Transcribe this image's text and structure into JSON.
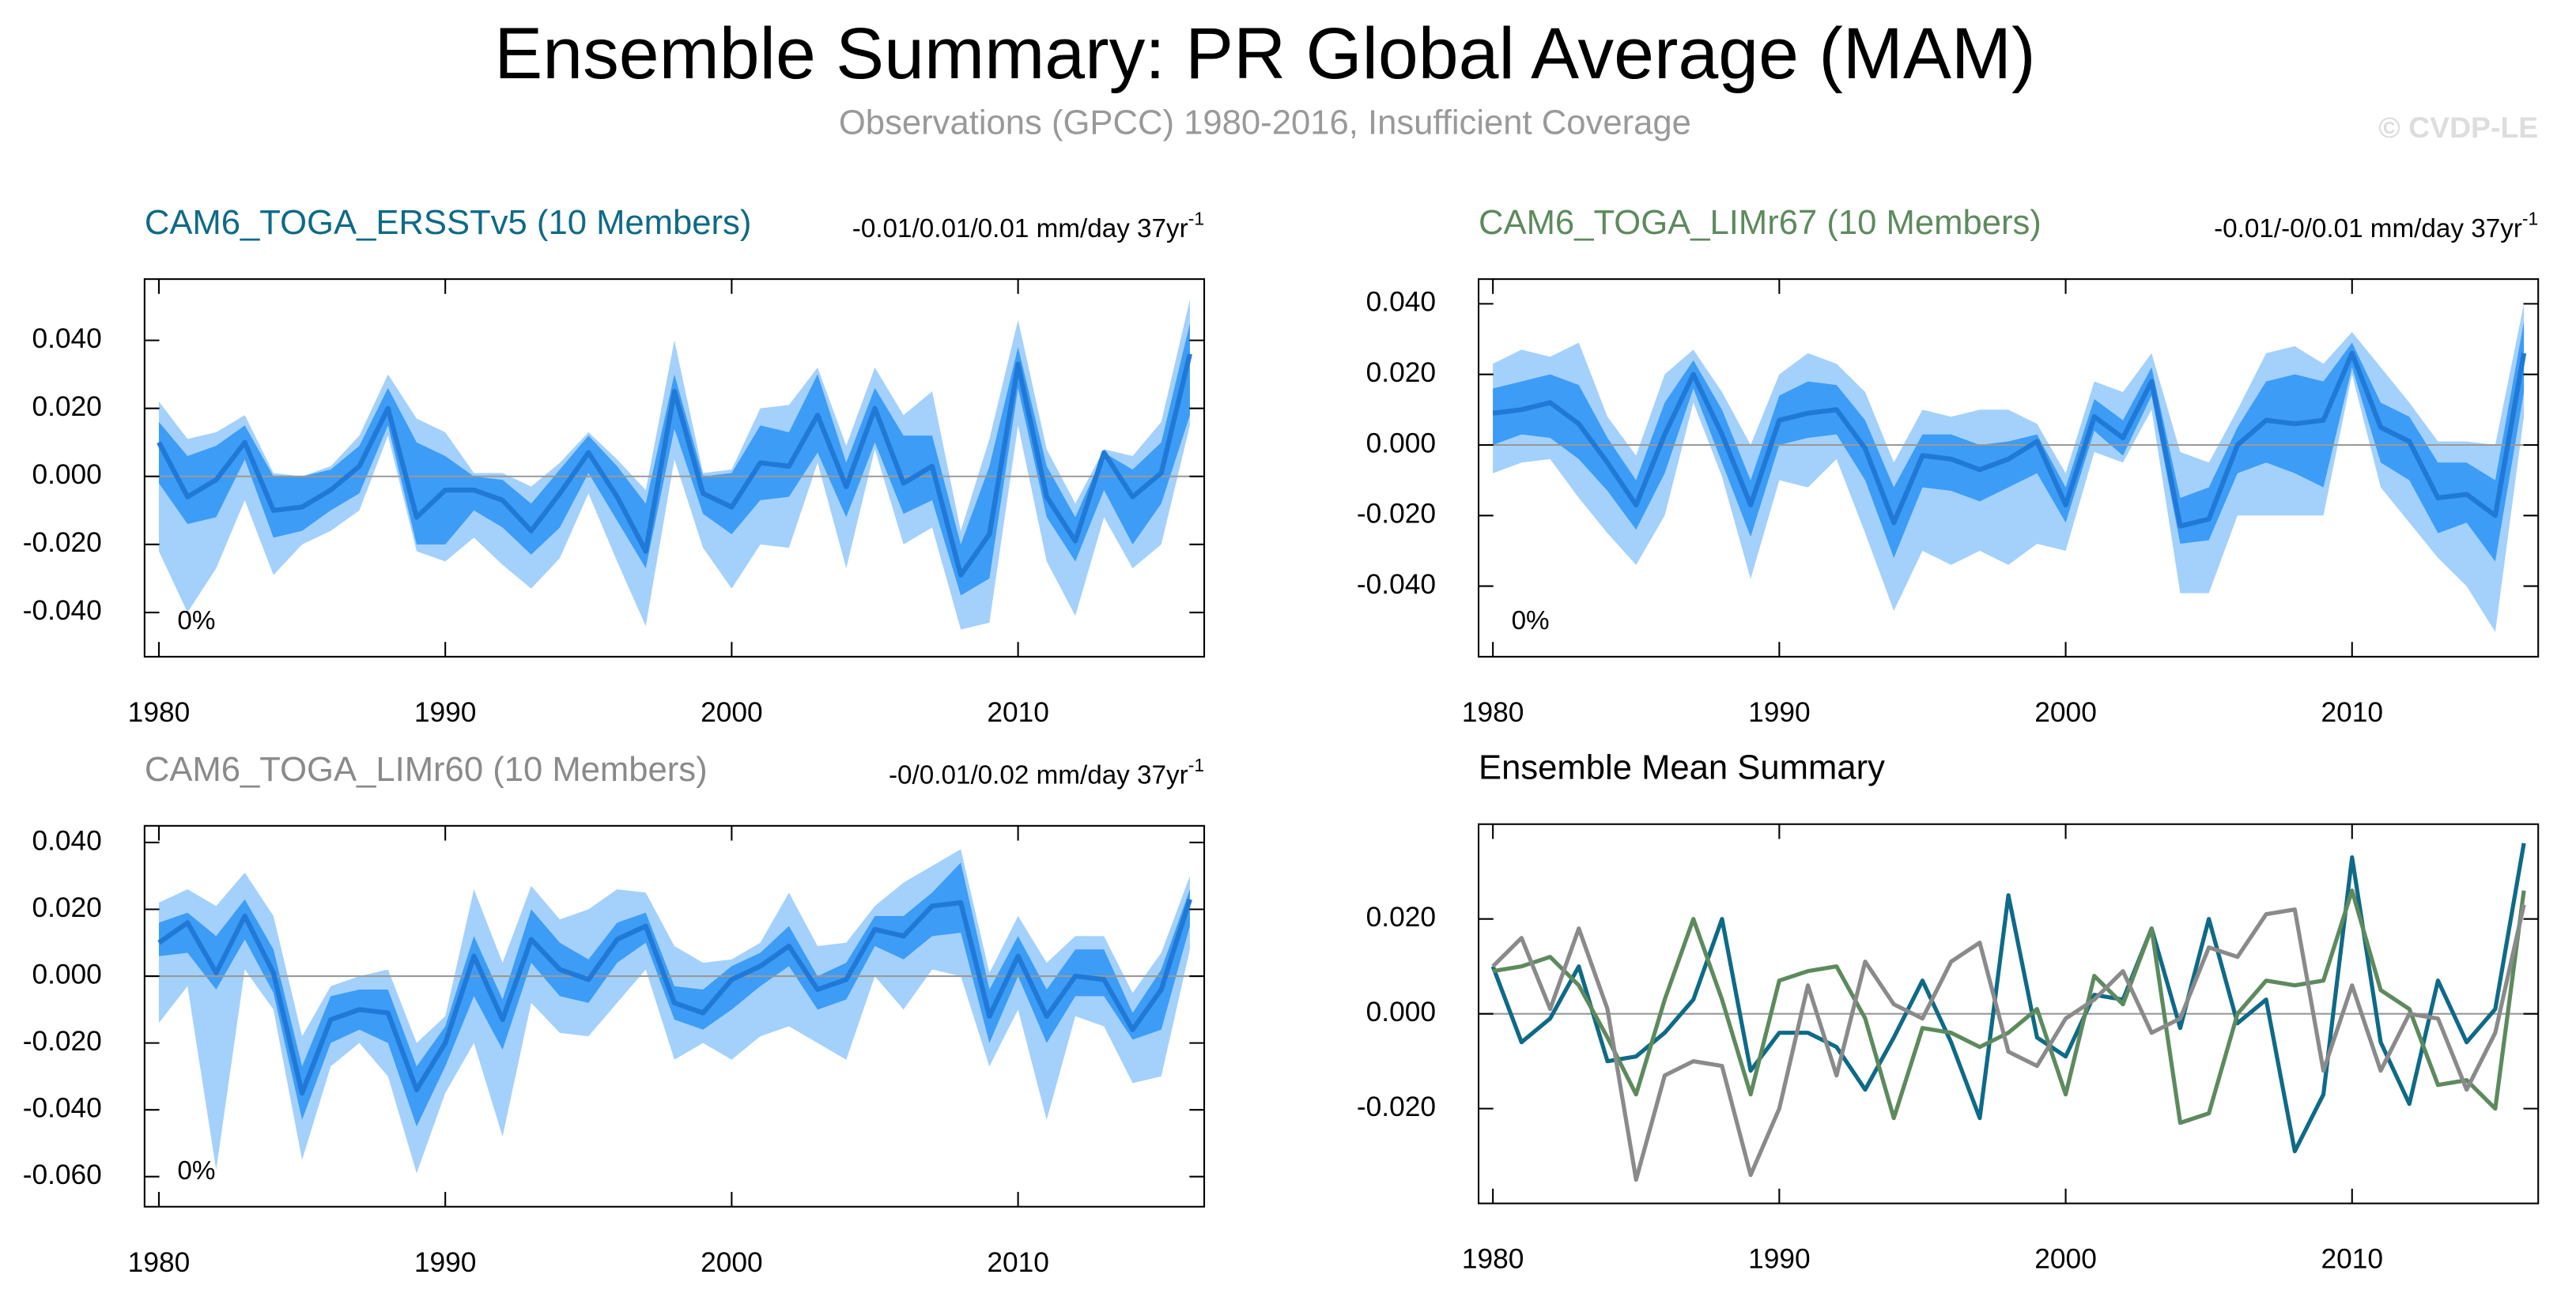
{
  "header": {
    "title": "Ensemble Summary: PR Global Average (MAM)",
    "subtitle": "Observations (GPCC) 1980-2016, Insufficient Coverage",
    "copyright": "© CVDP-LE"
  },
  "chart_data": [
    {
      "type": "band",
      "title": "CAM6_TOGA_ERSSTv5 (10 Members)",
      "title_color": "#0e6a87",
      "trend_label": "-0.01/0.01/0.01 mm/day 37yr",
      "trend_exponent": "-1",
      "annotation": "0%",
      "x": [
        1980,
        1981,
        1982,
        1983,
        1984,
        1985,
        1986,
        1987,
        1988,
        1989,
        1990,
        1991,
        1992,
        1993,
        1994,
        1995,
        1996,
        1997,
        1998,
        1999,
        2000,
        2001,
        2002,
        2003,
        2004,
        2005,
        2006,
        2007,
        2008,
        2009,
        2010,
        2011,
        2012,
        2013,
        2014,
        2015,
        2016
      ],
      "xlim": [
        1979.5,
        2016.5
      ],
      "xticks": [
        1980,
        1990,
        2000,
        2010
      ],
      "ylim": [
        -0.053,
        0.058
      ],
      "yticks": [
        {
          "value": 0.04,
          "label": "0.040"
        },
        {
          "value": 0.02,
          "label": "0.020"
        },
        {
          "value": 0,
          "label": "0.000"
        },
        {
          "value": -0.02,
          "label": "-0.020"
        },
        {
          "value": -0.04,
          "label": "-0.040"
        }
      ],
      "outer_color": "#a3d1fb",
      "inner_color": "#3d9cf5",
      "mean_color": "#2079d6",
      "outer_upper": [
        0.022,
        0.011,
        0.013,
        0.018,
        0.001,
        0.0,
        0.003,
        0.012,
        0.03,
        0.017,
        0.013,
        0.001,
        0.001,
        -0.003,
        0.004,
        0.013,
        0.005,
        -0.004,
        0.04,
        0.001,
        0.002,
        0.02,
        0.021,
        0.032,
        0.009,
        0.032,
        0.018,
        0.025,
        -0.016,
        0.011,
        0.046,
        0.008,
        -0.008,
        0.008,
        0.006,
        0.016,
        0.052
      ],
      "outer_lower": [
        -0.022,
        -0.04,
        -0.027,
        -0.007,
        -0.029,
        -0.02,
        -0.016,
        -0.01,
        0.012,
        -0.022,
        -0.025,
        -0.018,
        -0.026,
        -0.033,
        -0.024,
        -0.005,
        -0.025,
        -0.044,
        0.005,
        -0.021,
        -0.033,
        -0.02,
        -0.021,
        0.004,
        -0.027,
        0.008,
        -0.02,
        -0.015,
        -0.045,
        -0.043,
        0.015,
        -0.025,
        -0.041,
        -0.012,
        -0.027,
        -0.02,
        0.015
      ],
      "inner_upper": [
        0.016,
        0.006,
        0.009,
        0.015,
        0.0,
        0.0,
        0.002,
        0.009,
        0.026,
        0.01,
        0.006,
        0.0,
        -0.001,
        -0.008,
        0.002,
        0.012,
        0.003,
        -0.008,
        0.03,
        0.0,
        0.001,
        0.015,
        0.013,
        0.03,
        0.004,
        0.026,
        0.012,
        0.012,
        -0.02,
        0.003,
        0.038,
        0.003,
        -0.012,
        0.007,
        0.002,
        0.01,
        0.045
      ],
      "inner_lower": [
        -0.002,
        -0.014,
        -0.012,
        0.005,
        -0.018,
        -0.016,
        -0.01,
        -0.005,
        0.015,
        -0.02,
        -0.02,
        -0.01,
        -0.015,
        -0.023,
        -0.015,
        0.001,
        -0.013,
        -0.027,
        0.014,
        -0.011,
        -0.017,
        -0.007,
        -0.006,
        0.007,
        -0.012,
        0.01,
        -0.011,
        -0.007,
        -0.035,
        -0.03,
        0.026,
        -0.012,
        -0.025,
        -0.004,
        -0.02,
        -0.008,
        0.018
      ],
      "mean": [
        0.01,
        -0.006,
        -0.001,
        0.01,
        -0.01,
        -0.009,
        -0.004,
        0.003,
        0.02,
        -0.012,
        -0.004,
        -0.004,
        -0.007,
        -0.016,
        -0.005,
        0.007,
        -0.006,
        -0.022,
        0.025,
        -0.005,
        -0.009,
        0.004,
        0.003,
        0.018,
        -0.003,
        0.02,
        -0.002,
        0.003,
        -0.029,
        -0.017,
        0.033,
        -0.006,
        -0.019,
        0.007,
        -0.006,
        0.001,
        0.036
      ]
    },
    {
      "type": "band",
      "title": "CAM6_TOGA_LIMr67 (10 Members)",
      "title_color": "#5d8a5d",
      "trend_label": "-0.01/-0/0.01 mm/day 37yr",
      "trend_exponent": "-1",
      "annotation": "0%",
      "x": [
        1980,
        1981,
        1982,
        1983,
        1984,
        1985,
        1986,
        1987,
        1988,
        1989,
        1990,
        1991,
        1992,
        1993,
        1994,
        1995,
        1996,
        1997,
        1998,
        1999,
        2000,
        2001,
        2002,
        2003,
        2004,
        2005,
        2006,
        2007,
        2008,
        2009,
        2010,
        2011,
        2012,
        2013,
        2014,
        2015,
        2016
      ],
      "xlim": [
        1979.5,
        2016.5
      ],
      "xticks": [
        1980,
        1990,
        2000,
        2010
      ],
      "ylim": [
        -0.06,
        0.047
      ],
      "yticks": [
        {
          "value": 0.04,
          "label": "0.040"
        },
        {
          "value": 0.02,
          "label": "0.020"
        },
        {
          "value": 0,
          "label": "0.000"
        },
        {
          "value": -0.02,
          "label": "-0.020"
        },
        {
          "value": -0.04,
          "label": "-0.040"
        }
      ],
      "outer_color": "#a3d1fb",
      "inner_color": "#3d9cf5",
      "mean_color": "#2079d6",
      "outer_upper": [
        0.023,
        0.027,
        0.025,
        0.029,
        0.008,
        -0.003,
        0.02,
        0.027,
        0.015,
        0.0,
        0.02,
        0.026,
        0.023,
        0.015,
        -0.005,
        0.01,
        0.008,
        0.01,
        0.01,
        0.006,
        -0.008,
        0.018,
        0.015,
        0.026,
        -0.002,
        -0.005,
        0.01,
        0.026,
        0.028,
        0.023,
        0.032,
        0.022,
        0.012,
        0.001,
        0.001,
        0.0,
        0.04
      ],
      "outer_lower": [
        -0.008,
        -0.005,
        -0.004,
        -0.015,
        -0.025,
        -0.034,
        -0.02,
        0.012,
        -0.009,
        -0.038,
        -0.01,
        -0.012,
        -0.004,
        -0.025,
        -0.047,
        -0.03,
        -0.034,
        -0.03,
        -0.034,
        -0.028,
        -0.03,
        -0.002,
        -0.005,
        0.01,
        -0.042,
        -0.042,
        -0.02,
        -0.02,
        -0.02,
        -0.02,
        0.02,
        -0.012,
        -0.022,
        -0.032,
        -0.04,
        -0.053,
        0.008
      ],
      "inner_upper": [
        0.016,
        0.018,
        0.02,
        0.017,
        0.002,
        -0.01,
        0.012,
        0.024,
        0.01,
        -0.01,
        0.014,
        0.018,
        0.017,
        0.007,
        -0.012,
        0.003,
        0.003,
        0.0,
        0.001,
        0.003,
        -0.012,
        0.013,
        0.007,
        0.022,
        -0.015,
        -0.012,
        0.005,
        0.018,
        0.02,
        0.018,
        0.029,
        0.012,
        0.008,
        -0.005,
        -0.005,
        -0.01,
        0.035
      ],
      "inner_lower": [
        0.0,
        0.003,
        0.002,
        -0.004,
        -0.013,
        -0.024,
        -0.008,
        0.016,
        -0.005,
        -0.026,
        0.0,
        0.002,
        0.003,
        -0.01,
        -0.032,
        -0.012,
        -0.013,
        -0.016,
        -0.012,
        -0.008,
        -0.022,
        0.004,
        -0.003,
        0.014,
        -0.028,
        -0.027,
        -0.008,
        -0.005,
        -0.008,
        -0.012,
        0.022,
        -0.005,
        -0.01,
        -0.025,
        -0.022,
        -0.033,
        0.015
      ],
      "mean": [
        0.009,
        0.01,
        0.012,
        0.006,
        -0.005,
        -0.017,
        0.003,
        0.02,
        0.003,
        -0.017,
        0.007,
        0.009,
        0.01,
        -0.001,
        -0.022,
        -0.003,
        -0.004,
        -0.007,
        -0.004,
        0.001,
        -0.017,
        0.008,
        0.002,
        0.018,
        -0.023,
        -0.021,
        0.0,
        0.007,
        0.006,
        0.007,
        0.026,
        0.005,
        0.001,
        -0.015,
        -0.014,
        -0.02,
        0.026
      ]
    },
    {
      "type": "band",
      "title": "CAM6_TOGA_LIMr60 (10 Members)",
      "title_color": "#8a8a8a",
      "trend_label": "-0/0.01/0.02 mm/day 37yr",
      "trend_exponent": "-1",
      "annotation": "0%",
      "x": [
        1980,
        1981,
        1982,
        1983,
        1984,
        1985,
        1986,
        1987,
        1988,
        1989,
        1990,
        1991,
        1992,
        1993,
        1994,
        1995,
        1996,
        1997,
        1998,
        1999,
        2000,
        2001,
        2002,
        2003,
        2004,
        2005,
        2006,
        2007,
        2008,
        2009,
        2010,
        2011,
        2012,
        2013,
        2014,
        2015,
        2016
      ],
      "xlim": [
        1979.5,
        2016.5
      ],
      "xticks": [
        1980,
        1990,
        2000,
        2010
      ],
      "ylim": [
        -0.069,
        0.045
      ],
      "yticks": [
        {
          "value": 0.04,
          "label": "0.040"
        },
        {
          "value": 0.02,
          "label": "0.020"
        },
        {
          "value": 0,
          "label": "0.000"
        },
        {
          "value": -0.02,
          "label": "-0.020"
        },
        {
          "value": -0.04,
          "label": "-0.040"
        },
        {
          "value": -0.06,
          "label": "-0.060"
        }
      ],
      "outer_color": "#a3d1fb",
      "inner_color": "#3d9cf5",
      "mean_color": "#2079d6",
      "outer_upper": [
        0.022,
        0.026,
        0.021,
        0.031,
        0.018,
        -0.018,
        -0.003,
        0.0,
        0.002,
        -0.02,
        -0.012,
        0.026,
        0.004,
        0.027,
        0.017,
        0.02,
        0.026,
        0.025,
        0.009,
        0.004,
        0.005,
        0.01,
        0.025,
        0.009,
        0.01,
        0.021,
        0.028,
        0.033,
        0.038,
        0.001,
        0.018,
        0.004,
        0.012,
        0.012,
        -0.005,
        0.007,
        0.03
      ],
      "outer_lower": [
        -0.014,
        -0.003,
        -0.058,
        0.002,
        -0.01,
        -0.055,
        -0.027,
        -0.02,
        -0.03,
        -0.059,
        -0.035,
        -0.02,
        -0.048,
        -0.008,
        -0.017,
        -0.018,
        -0.008,
        0.002,
        -0.025,
        -0.02,
        -0.025,
        -0.018,
        -0.015,
        -0.02,
        -0.025,
        0.0,
        -0.01,
        0.002,
        0.0,
        -0.027,
        -0.01,
        -0.043,
        -0.012,
        -0.015,
        -0.032,
        -0.03,
        0.008
      ],
      "inner_upper": [
        0.016,
        0.019,
        0.012,
        0.023,
        0.008,
        -0.027,
        -0.006,
        -0.004,
        -0.004,
        -0.027,
        -0.015,
        0.012,
        -0.007,
        0.02,
        0.01,
        0.005,
        0.016,
        0.019,
        -0.003,
        -0.004,
        0.003,
        0.007,
        0.015,
        0.0,
        0.004,
        0.018,
        0.018,
        0.025,
        0.034,
        -0.004,
        0.012,
        -0.004,
        0.008,
        0.008,
        -0.011,
        0.002,
        0.026
      ],
      "inner_lower": [
        0.006,
        0.007,
        -0.004,
        0.011,
        -0.005,
        -0.043,
        -0.02,
        -0.016,
        -0.02,
        -0.045,
        -0.027,
        -0.006,
        -0.022,
        0.004,
        -0.006,
        -0.008,
        0.004,
        0.01,
        -0.013,
        -0.016,
        -0.01,
        -0.003,
        0.003,
        -0.01,
        -0.007,
        0.009,
        0.005,
        0.012,
        0.013,
        -0.02,
        0.0,
        -0.02,
        -0.006,
        -0.006,
        -0.019,
        -0.016,
        0.015
      ],
      "mean": [
        0.01,
        0.016,
        0.001,
        0.018,
        0.001,
        -0.035,
        -0.013,
        -0.01,
        -0.011,
        -0.034,
        -0.02,
        0.006,
        -0.013,
        0.011,
        0.002,
        -0.001,
        0.011,
        0.015,
        -0.008,
        -0.011,
        -0.001,
        0.003,
        0.009,
        -0.004,
        -0.001,
        0.014,
        0.012,
        0.021,
        0.022,
        -0.012,
        0.006,
        -0.012,
        0.0,
        -0.001,
        -0.016,
        -0.004,
        0.023
      ]
    },
    {
      "type": "line",
      "title": "Ensemble Mean Summary",
      "title_color": "#000000",
      "x": [
        1980,
        1981,
        1982,
        1983,
        1984,
        1985,
        1986,
        1987,
        1988,
        1989,
        1990,
        1991,
        1992,
        1993,
        1994,
        1995,
        1996,
        1997,
        1998,
        1999,
        2000,
        2001,
        2002,
        2003,
        2004,
        2005,
        2006,
        2007,
        2008,
        2009,
        2010,
        2011,
        2012,
        2013,
        2014,
        2015,
        2016
      ],
      "xlim": [
        1979.5,
        2016.5
      ],
      "xticks": [
        1980,
        1990,
        2000,
        2010
      ],
      "ylim": [
        -0.04,
        0.04
      ],
      "yticks": [
        {
          "value": 0.02,
          "label": "0.020"
        },
        {
          "value": 0,
          "label": "0.000"
        },
        {
          "value": -0.02,
          "label": "-0.020"
        }
      ],
      "series": [
        {
          "color": "#0e6a87",
          "values": [
            0.01,
            -0.006,
            -0.001,
            0.01,
            -0.01,
            -0.009,
            -0.004,
            0.003,
            0.02,
            -0.012,
            -0.004,
            -0.004,
            -0.007,
            -0.016,
            -0.005,
            0.007,
            -0.006,
            -0.022,
            0.025,
            -0.005,
            -0.009,
            0.004,
            0.003,
            0.018,
            -0.003,
            0.02,
            -0.002,
            0.003,
            -0.029,
            -0.017,
            0.033,
            -0.006,
            -0.019,
            0.007,
            -0.006,
            0.001,
            0.036
          ]
        },
        {
          "color": "#5d8a5d",
          "values": [
            0.009,
            0.01,
            0.012,
            0.006,
            -0.005,
            -0.017,
            0.003,
            0.02,
            0.003,
            -0.017,
            0.007,
            0.009,
            0.01,
            -0.001,
            -0.022,
            -0.003,
            -0.004,
            -0.007,
            -0.004,
            0.001,
            -0.017,
            0.008,
            0.002,
            0.018,
            -0.023,
            -0.021,
            0.0,
            0.007,
            0.006,
            0.007,
            0.026,
            0.005,
            0.001,
            -0.015,
            -0.014,
            -0.02,
            0.026
          ]
        },
        {
          "color": "#8a8a8a",
          "values": [
            0.01,
            0.016,
            0.001,
            0.018,
            0.001,
            -0.035,
            -0.013,
            -0.01,
            -0.011,
            -0.034,
            -0.02,
            0.006,
            -0.013,
            0.011,
            0.002,
            -0.001,
            0.011,
            0.015,
            -0.008,
            -0.011,
            -0.001,
            0.003,
            0.009,
            -0.004,
            -0.001,
            0.014,
            0.012,
            0.021,
            0.022,
            -0.012,
            0.006,
            -0.012,
            0.0,
            -0.001,
            -0.016,
            -0.004,
            0.023
          ]
        }
      ]
    }
  ]
}
